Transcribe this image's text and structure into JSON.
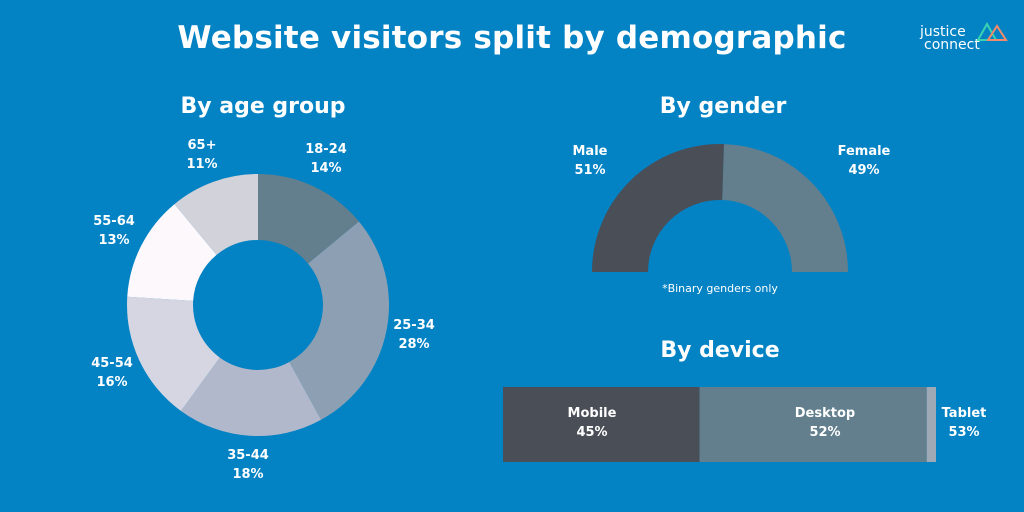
{
  "title": "Website visitors split by demographic",
  "logo": {
    "line1": "justice",
    "line2": "connect"
  },
  "colors": {
    "background": "#0382c4",
    "dark": "#4a4e57",
    "slate": "#637f8d",
    "blue_grey": "#8da0b3",
    "grey_blue": "#b1b8cb",
    "light_grey": "#d6d6e2",
    "white": "#fcf8fc",
    "pale": "#d2d2da",
    "tablet": "#9fa8b5"
  },
  "chart_data": [
    {
      "type": "pie",
      "title": "By age group",
      "categories": [
        "18-24",
        "25-34",
        "35-44",
        "45-54",
        "55-64",
        "65+"
      ],
      "values": [
        14,
        28,
        18,
        16,
        13,
        11
      ],
      "labels": [
        "14%",
        "28%",
        "18%",
        "16%",
        "13%",
        "11%"
      ],
      "colors": [
        "#637f8d",
        "#8da0b3",
        "#b1b8cb",
        "#d6d6e2",
        "#fcf8fc",
        "#d2d2da"
      ]
    },
    {
      "type": "pie",
      "title": "By gender",
      "categories": [
        "Male",
        "Female"
      ],
      "values": [
        51,
        49
      ],
      "labels": [
        "51%",
        "49%"
      ],
      "colors": [
        "#4a4e57",
        "#637f8d"
      ],
      "note": "*Binary genders only"
    },
    {
      "type": "bar",
      "title": "By device",
      "categories": [
        "Mobile",
        "Desktop",
        "Tablet"
      ],
      "values": [
        45,
        52,
        53
      ],
      "labels": [
        "45%",
        "52%",
        "53%"
      ],
      "colors": [
        "#4a4e57",
        "#637f8d",
        "#9fa8b5"
      ]
    }
  ]
}
